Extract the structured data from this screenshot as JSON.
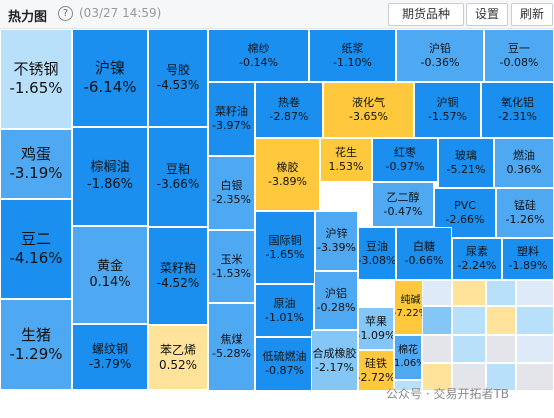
{
  "header": {
    "title": "热力图",
    "help_icon": "?",
    "time": "(03/27 14:59)",
    "buttons": [
      "期货品种",
      "设置",
      "刷新"
    ]
  },
  "cells": [
    {
      "name": "不锈钢",
      "pct": "-1.65%"
    },
    {
      "name": "鸡蛋",
      "pct": "-3.19%"
    },
    {
      "name": "豆二",
      "pct": "-4.16%"
    },
    {
      "name": "生猪",
      "pct": "-1.29%"
    },
    {
      "name": "沪镍",
      "pct": "-6.14%"
    },
    {
      "name": "棕榈油",
      "pct": "-1.86%"
    },
    {
      "name": "黄金",
      "pct": "0.14%"
    },
    {
      "name": "螺纹钢",
      "pct": "-3.79%"
    },
    {
      "name": "号胶",
      "pct": "-4.53%"
    },
    {
      "name": "豆粕",
      "pct": "-3.66%"
    },
    {
      "name": "菜籽粕",
      "pct": "-4.52%"
    },
    {
      "name": "苯乙烯",
      "pct": "0.52%"
    },
    {
      "name": "棉纱",
      "pct": "-0.14%"
    },
    {
      "name": "纸浆",
      "pct": "-1.10%"
    },
    {
      "name": "沪铅",
      "pct": "-0.36%"
    },
    {
      "name": "豆一",
      "pct": "-0.08%"
    },
    {
      "name": "菜籽油",
      "pct": "-3.97%"
    },
    {
      "name": "热卷",
      "pct": "-2.87%"
    },
    {
      "name": "液化气",
      "pct": "-3.65%"
    },
    {
      "name": "沪铜",
      "pct": "-1.57%"
    },
    {
      "name": "氧化铝",
      "pct": "-2.31%"
    },
    {
      "name": "白银",
      "pct": "-2.35%"
    },
    {
      "name": "橡胶",
      "pct": "-3.89%"
    },
    {
      "name": "花生",
      "pct": "1.53%"
    },
    {
      "name": "红枣",
      "pct": "-0.97%"
    },
    {
      "name": "玻璃",
      "pct": "-5.21%"
    },
    {
      "name": "燃油",
      "pct": "0.36%"
    },
    {
      "name": "乙二醇",
      "pct": "-0.47%"
    },
    {
      "name": "PVC",
      "pct": "-2.66%"
    },
    {
      "name": "锰硅",
      "pct": "-1.26%"
    },
    {
      "name": "国际铜",
      "pct": "-1.65%"
    },
    {
      "name": "沪锌",
      "pct": "-3.39%"
    },
    {
      "name": "豆油",
      "pct": "-3.08%"
    },
    {
      "name": "白糖",
      "pct": "-0.66%"
    },
    {
      "name": "尿素",
      "pct": "-2.24%"
    },
    {
      "name": "塑料",
      "pct": "-1.89%"
    },
    {
      "name": "玉米",
      "pct": "-1.53%"
    },
    {
      "name": "原油",
      "pct": "-1.01%"
    },
    {
      "name": "沪铝",
      "pct": "-0.28%"
    },
    {
      "name": "纯碱",
      "pct": "-7.22%"
    },
    {
      "name": "苹果",
      "pct": "-1.09%"
    },
    {
      "name": "焦煤",
      "pct": "-5.28%"
    },
    {
      "name": "低硫燃油",
      "pct": "-0.87%"
    },
    {
      "name": "合成橡胶",
      "pct": "-2.17%"
    },
    {
      "name": "棉花",
      "pct": "-1.06%"
    },
    {
      "name": "硅铁",
      "pct": "-2.72%"
    }
  ],
  "colors": {
    "blue_deep": "#1a8ff0",
    "blue_mid": "#4fa8f2",
    "blue_light": "#84c6f6",
    "blue_pale": "#b9e0fa",
    "orange": "#ffc83d",
    "orange_pale": "#ffe39a",
    "grey": "#e4e5ea",
    "tile_light": "#dfeaf8"
  },
  "watermark": "公众号 · 交易开拓者TB"
}
